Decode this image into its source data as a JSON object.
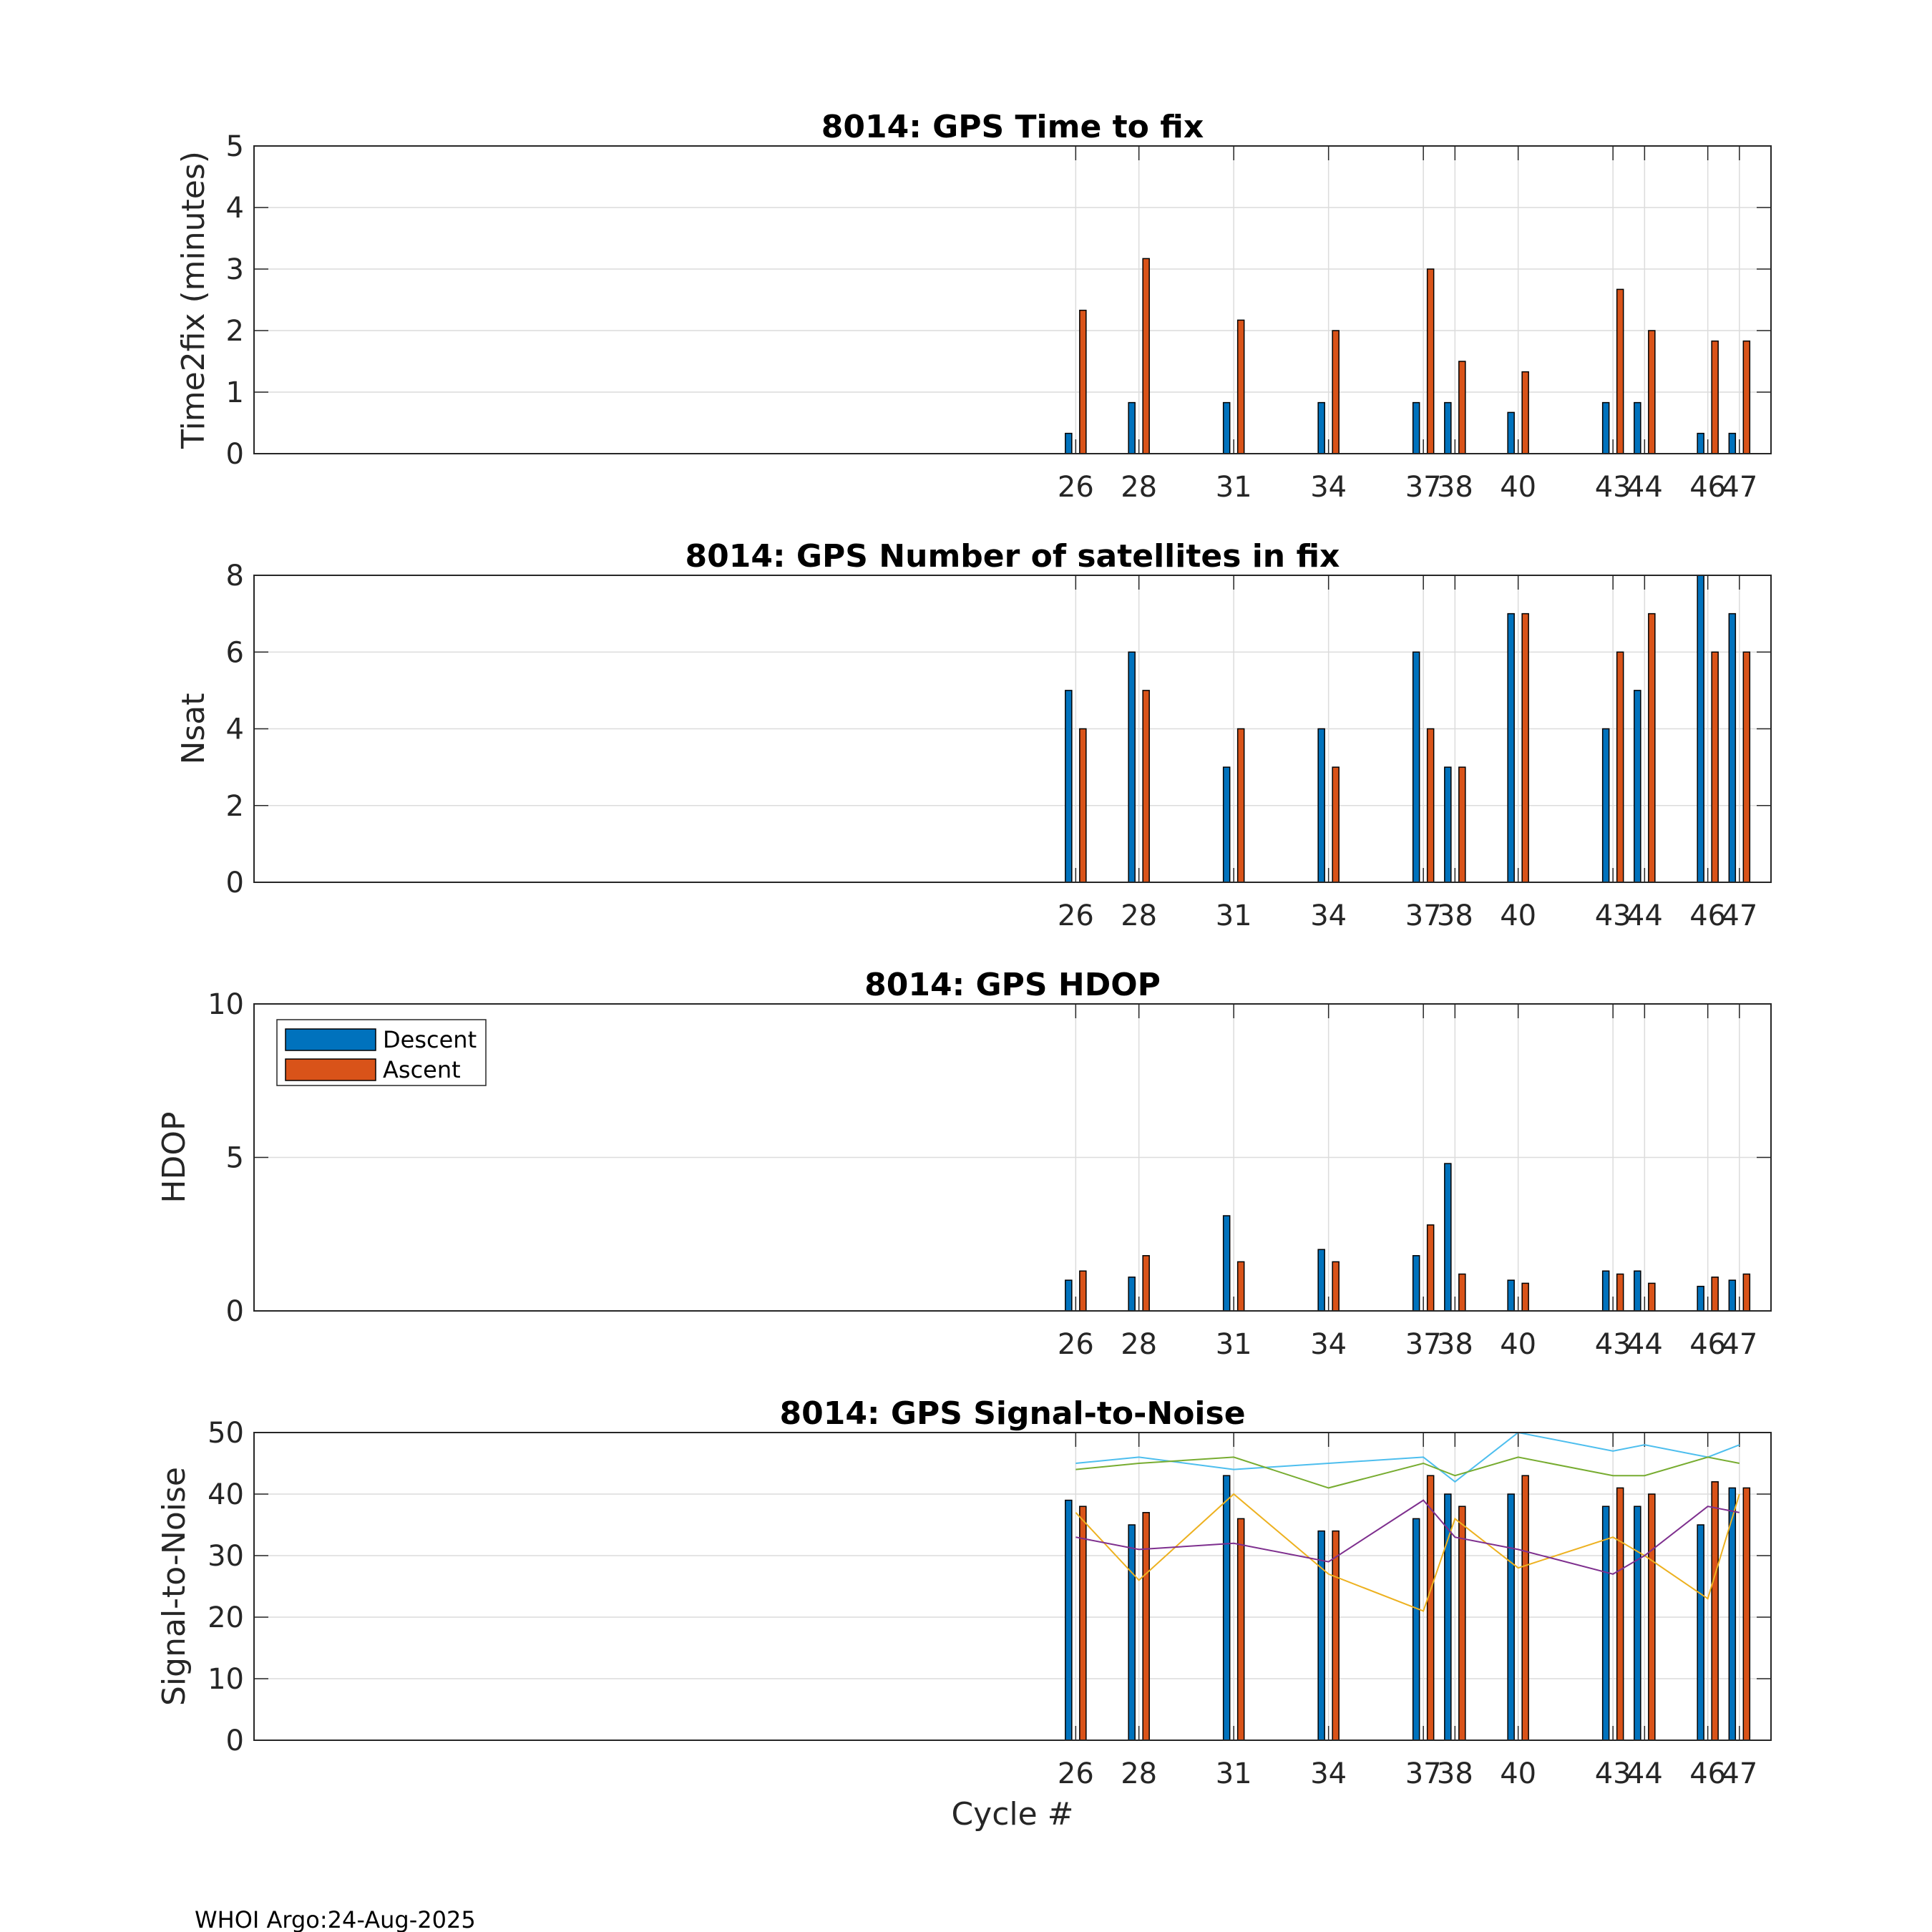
{
  "footer": "WHOI Argo:24-Aug-2025",
  "legend": [
    "Descent",
    "Ascent"
  ],
  "colors": {
    "descent": "#0072BD",
    "ascent": "#D95319",
    "grid": "#dcdcdc",
    "snr_lines": [
      "#4DBEEE",
      "#77AC30",
      "#EDB120",
      "#7E2F8E"
    ]
  },
  "chart_data": [
    {
      "type": "bar",
      "title": "8014: GPS Time to fix",
      "xlabel": "",
      "ylabel": "Time2fix (minutes)",
      "xlim": [
        0,
        48
      ],
      "ylim": [
        0,
        5
      ],
      "yticks": [
        "0",
        "1",
        "2",
        "3",
        "4",
        "5"
      ],
      "xticks": [
        "26",
        "28",
        "31",
        "34",
        "37",
        "38",
        "40",
        "43",
        "44",
        "46",
        "47"
      ],
      "categories": [
        26,
        28,
        31,
        34,
        37,
        38,
        40,
        43,
        44,
        46,
        47
      ],
      "series": [
        {
          "name": "Descent",
          "values": [
            0.33,
            0.83,
            0.83,
            0.83,
            0.83,
            0.83,
            0.67,
            0.83,
            0.83,
            0.33,
            0.33
          ]
        },
        {
          "name": "Ascent",
          "values": [
            2.33,
            3.17,
            2.17,
            2.0,
            3.0,
            1.5,
            1.33,
            2.67,
            2.0,
            1.83,
            1.83
          ]
        }
      ]
    },
    {
      "type": "bar",
      "title": "8014: GPS Number of satellites in fix",
      "xlabel": "",
      "ylabel": "Nsat",
      "xlim": [
        0,
        48
      ],
      "ylim": [
        0,
        8
      ],
      "yticks": [
        "0",
        "2",
        "4",
        "6",
        "8"
      ],
      "xticks": [
        "26",
        "28",
        "31",
        "34",
        "37",
        "38",
        "40",
        "43",
        "44",
        "46",
        "47"
      ],
      "categories": [
        26,
        28,
        31,
        34,
        37,
        38,
        40,
        43,
        44,
        46,
        47
      ],
      "series": [
        {
          "name": "Descent",
          "values": [
            5,
            6,
            3,
            4,
            6,
            3,
            7,
            4,
            5,
            8,
            7
          ]
        },
        {
          "name": "Ascent",
          "values": [
            4,
            5,
            4,
            3,
            4,
            3,
            7,
            6,
            7,
            6,
            6
          ]
        }
      ]
    },
    {
      "type": "bar",
      "title": "8014: GPS HDOP",
      "xlabel": "",
      "ylabel": "HDOP",
      "xlim": [
        0,
        48
      ],
      "ylim": [
        0,
        10
      ],
      "yticks": [
        "0",
        "5",
        "10"
      ],
      "xticks": [
        "26",
        "28",
        "31",
        "34",
        "37",
        "38",
        "40",
        "43",
        "44",
        "46",
        "47"
      ],
      "categories": [
        26,
        28,
        31,
        34,
        37,
        38,
        40,
        43,
        44,
        46,
        47
      ],
      "legend_position": "top-left",
      "series": [
        {
          "name": "Descent",
          "values": [
            1.0,
            1.1,
            3.1,
            2.0,
            1.8,
            4.8,
            1.0,
            1.3,
            1.3,
            0.8,
            1.0
          ]
        },
        {
          "name": "Ascent",
          "values": [
            1.3,
            1.8,
            1.6,
            1.6,
            2.8,
            1.2,
            0.9,
            1.2,
            0.9,
            1.1,
            1.2
          ]
        }
      ]
    },
    {
      "type": "bar",
      "title": "8014: GPS Signal-to-Noise",
      "xlabel": "Cycle #",
      "ylabel": "Signal-to-Noise",
      "xlim": [
        0,
        48
      ],
      "ylim": [
        0,
        50
      ],
      "yticks": [
        "0",
        "10",
        "20",
        "30",
        "40",
        "50"
      ],
      "xticks": [
        "26",
        "28",
        "31",
        "34",
        "37",
        "38",
        "40",
        "43",
        "44",
        "46",
        "47"
      ],
      "categories": [
        26,
        28,
        31,
        34,
        37,
        38,
        40,
        43,
        44,
        46,
        47
      ],
      "series": [
        {
          "name": "Descent",
          "values": [
            39,
            35,
            43,
            34,
            36,
            40,
            40,
            38,
            38,
            35,
            41
          ]
        },
        {
          "name": "Ascent",
          "values": [
            38,
            37,
            36,
            34,
            43,
            38,
            43,
            41,
            40,
            42,
            41
          ]
        }
      ],
      "lines": [
        {
          "values": [
            45,
            46,
            44,
            45,
            46,
            42,
            50,
            47,
            48,
            46,
            48
          ]
        },
        {
          "values": [
            44,
            45,
            46,
            41,
            45,
            43,
            46,
            43,
            43,
            46,
            45
          ]
        },
        {
          "values": [
            37,
            26,
            40,
            27,
            21,
            36,
            28,
            33,
            30,
            23,
            40
          ]
        },
        {
          "values": [
            33,
            31,
            32,
            29,
            39,
            33,
            31,
            27,
            30,
            38,
            37
          ]
        }
      ]
    }
  ]
}
